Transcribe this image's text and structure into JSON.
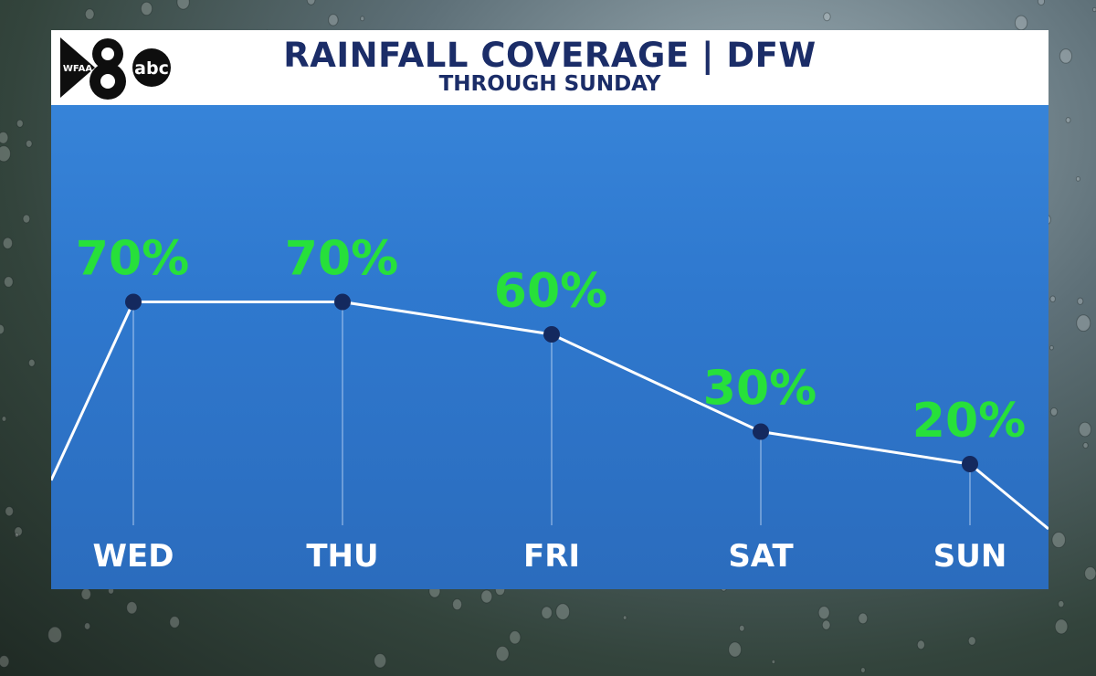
{
  "logo": {
    "station": "WFAA",
    "channel": "8",
    "network": "abc"
  },
  "title": "RAINFALL COVERAGE | DFW",
  "subtitle": "THROUGH SUNDAY",
  "colors": {
    "panel": "#2f79cf",
    "header_text": "#1b2d68",
    "value_text": "#27e03a",
    "line": "#ffffff",
    "marker": "#14295e"
  },
  "chart_data": {
    "type": "line",
    "title": "RAINFALL COVERAGE | DFW",
    "subtitle": "THROUGH SUNDAY",
    "categories": [
      "WED",
      "THU",
      "FRI",
      "SAT",
      "SUN"
    ],
    "values": [
      70,
      70,
      60,
      30,
      20
    ],
    "value_labels": [
      "70%",
      "70%",
      "60%",
      "30%",
      "20%"
    ],
    "unit": "%",
    "ylim": [
      0,
      100
    ],
    "grid": false,
    "legend": "none"
  }
}
